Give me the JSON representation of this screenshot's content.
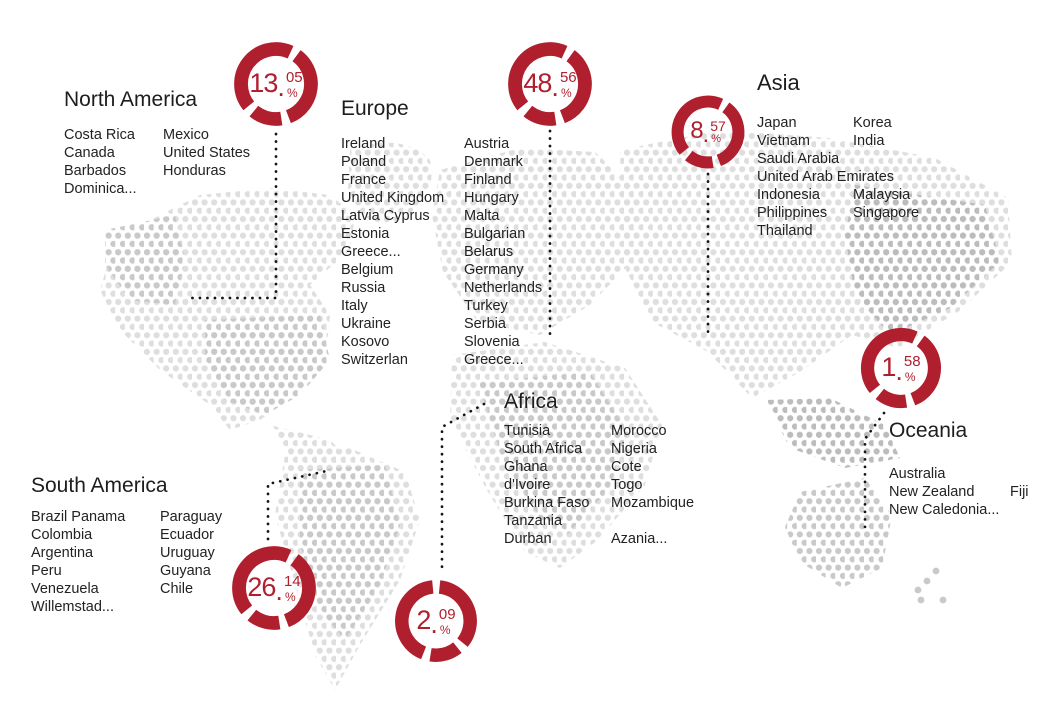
{
  "symbols": {
    "decimal": ".",
    "percent": "%"
  },
  "colors": {
    "accent": "#b01f2e",
    "map_dot_light": "#dedede",
    "map_dot_mid": "#c9c9c9",
    "map_dot_dark": "#bcbcbc",
    "connector": "#151515",
    "text": "#1d1d1d"
  },
  "chart_data": {
    "type": "pie",
    "title": "",
    "categories": [
      "North America",
      "Europe",
      "Asia",
      "Oceania",
      "South America",
      "Africa"
    ],
    "values": [
      13.05,
      48.56,
      8.57,
      1.58,
      26.14,
      2.09
    ],
    "unit": "%",
    "legend_position": "none"
  },
  "regions": [
    {
      "title": "North America",
      "value_int": "13",
      "value_dec": "05",
      "display": "13.05%",
      "columns": [
        [
          "Costa Rica",
          "Canada",
          "Barbados",
          "Dominica..."
        ],
        [
          "Mexico",
          "United States",
          "Honduras"
        ]
      ]
    },
    {
      "title": "Europe",
      "value_int": "48",
      "value_dec": "56",
      "display": "48.56%",
      "columns": [
        [
          "Ireland",
          "Poland",
          "France",
          "United Kingdom",
          "Latvia Cyprus",
          "Estonia",
          "Greece...",
          "Belgium",
          "Russia",
          "Italy",
          "Ukraine",
          "Kosovo",
          "Switzerlan"
        ],
        [
          "Austria",
          "Denmark",
          "Finland",
          "Hungary",
          "Malta",
          "Bulgarian",
          "Belarus",
          "Germany",
          "Netherlands",
          "Turkey",
          "Serbia",
          "Slovenia",
          "Greece..."
        ]
      ]
    },
    {
      "title": "Asia",
      "value_int": "8",
      "value_dec": "57",
      "display": "8.57%",
      "columns": [
        [
          "Japan",
          "Vietnam",
          "Saudi Arabia",
          "United Arab Emirates",
          "Indonesia",
          "Philippines",
          "Thailand"
        ],
        [
          "Korea",
          "India",
          "",
          "",
          "Malaysia",
          "Singapore"
        ]
      ]
    },
    {
      "title": "Oceania",
      "value_int": "1",
      "value_dec": "58",
      "display": "1.58%",
      "columns": [
        [
          "Australia",
          "New Zealand",
          "New Caledonia..."
        ],
        [
          "",
          "Fiji",
          ""
        ]
      ]
    },
    {
      "title": "South America",
      "value_int": "26",
      "value_dec": "14",
      "display": "26.14%",
      "columns": [
        [
          "Brazil  Panama",
          "Colombia",
          "Argentina",
          "Peru",
          "Venezuela",
          "Willemstad..."
        ],
        [
          "Paraguay",
          "Ecuador",
          "Uruguay",
          "Guyana",
          "Chile"
        ]
      ]
    },
    {
      "title": "Africa",
      "value_int": "2",
      "value_dec": "09",
      "display": "2.09%",
      "columns": [
        [
          "Tunisia",
          "South Africa",
          "Ghana",
          "d'Ivoire",
          "Burkina Faso",
          "Tanzania",
          "Durban"
        ],
        [
          "Morocco",
          "Nigeria",
          "Cote",
          "Togo",
          "Mozambique",
          "",
          "Azania..."
        ]
      ]
    }
  ]
}
